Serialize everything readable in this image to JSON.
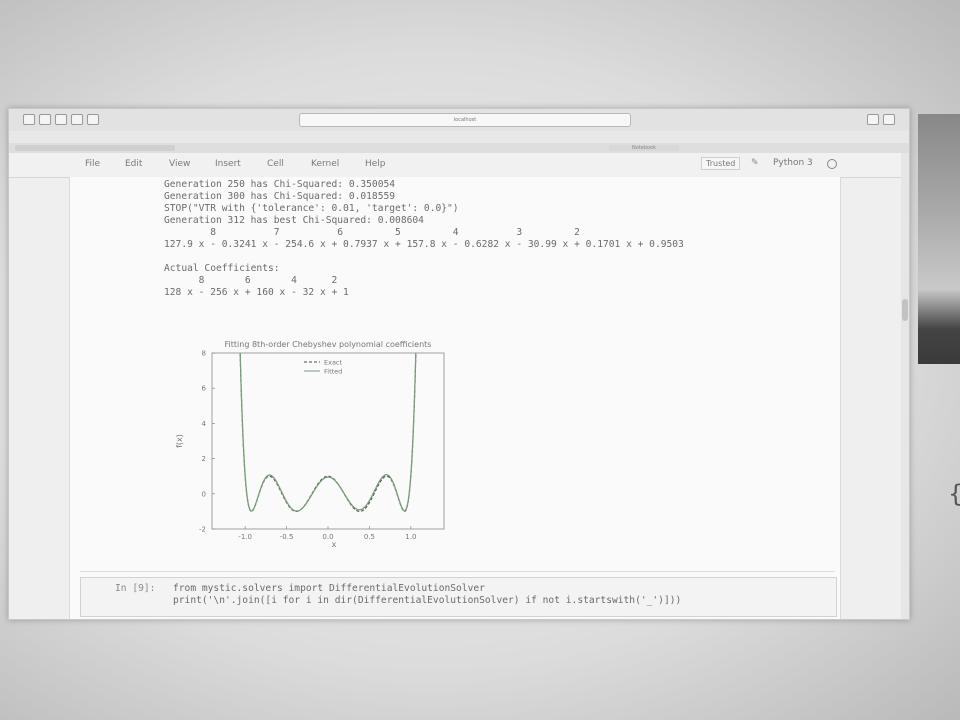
{
  "browser": {
    "url": "localhost",
    "tab_title": "Notebook"
  },
  "menu": {
    "items": [
      "File",
      "Edit",
      "View",
      "Insert",
      "Cell",
      "Kernel",
      "Help"
    ],
    "trusted": "Trusted",
    "kernel_name": "Python 3"
  },
  "output": {
    "lines": [
      "Generation 250 has Chi-Squared: 0.350054",
      "Generation 300 has Chi-Squared: 0.018559",
      "STOP(\"VTR with {'tolerance': 0.01, 'target': 0.0}\")",
      "Generation 312 has best Chi-Squared: 0.008604",
      "        8          7          6         5         4          3         2",
      "127.9 x - 0.3241 x - 254.6 x + 0.7937 x + 157.8 x - 0.6282 x - 30.99 x + 0.1701 x + 0.9503",
      "",
      "Actual Coefficients:",
      "      8       6       4      2",
      "128 x - 256 x + 160 x - 32 x + 1"
    ]
  },
  "chart_data": {
    "type": "line",
    "title": "Fitting 8th-order Chebyshev polynomial coefficients",
    "xlabel": "x",
    "ylabel": "f(x)",
    "xlim": [
      -1.4,
      1.4
    ],
    "ylim": [
      -2,
      8
    ],
    "xticks": [
      "-1.0",
      "-0.5",
      "0.0",
      "0.5",
      "1.0"
    ],
    "yticks": [
      "8",
      "6",
      "4",
      "2",
      "0",
      "-2"
    ],
    "legend_position": "top-center",
    "series": [
      {
        "name": "Exact",
        "style": "dashed",
        "color": "#4a4a4a",
        "coefficients": [
          1,
          0,
          -32,
          0,
          160,
          0,
          -256,
          0,
          128
        ]
      },
      {
        "name": "Fitted",
        "style": "solid",
        "color": "#7a9c7a",
        "coefficients": [
          0.9503,
          0.1701,
          -30.99,
          -0.6282,
          157.8,
          0.7937,
          -254.6,
          -0.3241,
          127.9
        ]
      }
    ]
  },
  "input_cell": {
    "prompt": "In [9]:",
    "code": [
      "from mystic.solvers import DifferentialEvolutionSolver",
      "print('\\n'.join([i for i in dir(DifferentialEvolutionSolver) if not i.startswith('_')]))"
    ]
  }
}
